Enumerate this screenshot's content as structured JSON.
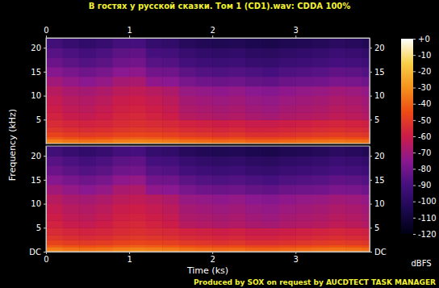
{
  "chart_data": {
    "type": "heatmap",
    "title": "В гостях у русской сказки. Том 1 (CD1).wav: CDDA 100%",
    "x_label": "Time (ks)",
    "y_label": "Frequency (kHz)",
    "annotations": [
      "Produced by SOX on request by AUCDTECT TASK MANAGER"
    ],
    "xlim": [
      0,
      3.89
    ],
    "xticks": [
      0,
      1,
      2,
      3
    ],
    "ylim": [
      0,
      22.05
    ],
    "time_edges": [
      0,
      0.2,
      0.4,
      0.6,
      0.8,
      1.0,
      1.2,
      1.4,
      1.6,
      1.8,
      2.0,
      2.2,
      2.4,
      2.6,
      2.8,
      3.0,
      3.2,
      3.4,
      3.6,
      3.8,
      3.89
    ],
    "freq_edges": [
      0,
      0.5,
      1,
      1.5,
      2.5,
      3.5,
      5,
      6.5,
      8,
      10,
      12,
      14,
      16,
      18,
      20,
      22.05
    ],
    "colorbar": {
      "label": "dBFS",
      "range": [
        -120,
        0
      ],
      "ticks": [
        {
          "value": 0,
          "label": "+0"
        },
        -10,
        -20,
        -30,
        -40,
        -50,
        -60,
        -70,
        -80,
        -90,
        -100,
        -110,
        -120
      ]
    },
    "channels": [
      {
        "yticks": [
          5,
          10,
          15,
          20
        ],
        "cells": [
          [
            -32,
            -34,
            -35,
            -34,
            -32,
            -31,
            -32,
            -33,
            -35,
            -36,
            -37,
            -36,
            -38,
            -38,
            -37,
            -36,
            -35,
            -34,
            -35,
            -36
          ],
          [
            -35,
            -37,
            -38,
            -37,
            -35,
            -34,
            -35,
            -36,
            -38,
            -39,
            -40,
            -39,
            -41,
            -41,
            -40,
            -39,
            -38,
            -37,
            -38,
            -39
          ],
          [
            -42,
            -44,
            -45,
            -44,
            -42,
            -41,
            -42,
            -43,
            -45,
            -46,
            -47,
            -46,
            -48,
            -48,
            -47,
            -46,
            -45,
            -44,
            -45,
            -46
          ],
          [
            -48,
            -50,
            -51,
            -50,
            -48,
            -47,
            -48,
            -49,
            -51,
            -52,
            -53,
            -52,
            -54,
            -54,
            -53,
            -52,
            -51,
            -50,
            -51,
            -52
          ],
          [
            -52,
            -54,
            -55,
            -54,
            -52,
            -51,
            -52,
            -53,
            -55,
            -56,
            -57,
            -56,
            -58,
            -58,
            -57,
            -56,
            -55,
            -54,
            -55,
            -56
          ],
          [
            -55,
            -57,
            -58,
            -57,
            -55,
            -54,
            -55,
            -56,
            -58,
            -59,
            -60,
            -59,
            -61,
            -61,
            -60,
            -59,
            -58,
            -57,
            -58,
            -59
          ],
          [
            -58,
            -61,
            -62,
            -60,
            -57,
            -56,
            -58,
            -60,
            -65,
            -66,
            -67,
            -66,
            -68,
            -69,
            -67,
            -66,
            -65,
            -63,
            -64,
            -66
          ],
          [
            -60,
            -63,
            -64,
            -62,
            -59,
            -58,
            -60,
            -62,
            -67,
            -68,
            -69,
            -68,
            -70,
            -71,
            -69,
            -68,
            -67,
            -65,
            -66,
            -68
          ],
          [
            -62,
            -65,
            -66,
            -64,
            -61,
            -60,
            -62,
            -64,
            -69,
            -70,
            -71,
            -70,
            -72,
            -73,
            -71,
            -70,
            -69,
            -67,
            -68,
            -70
          ],
          [
            -65,
            -68,
            -69,
            -67,
            -64,
            -63,
            -65,
            -67,
            -72,
            -73,
            -74,
            -73,
            -75,
            -76,
            -74,
            -73,
            -72,
            -70,
            -71,
            -73
          ],
          [
            -70,
            -73,
            -75,
            -73,
            -69,
            -68,
            -74,
            -75,
            -79,
            -81,
            -82,
            -81,
            -83,
            -84,
            -82,
            -81,
            -80,
            -78,
            -79,
            -81
          ],
          [
            -76,
            -79,
            -81,
            -79,
            -75,
            -74,
            -80,
            -81,
            -85,
            -87,
            -88,
            -87,
            -89,
            -90,
            -88,
            -87,
            -86,
            -84,
            -85,
            -87
          ],
          [
            -82,
            -85,
            -87,
            -85,
            -81,
            -80,
            -86,
            -87,
            -91,
            -93,
            -94,
            -93,
            -95,
            -96,
            -94,
            -93,
            -92,
            -90,
            -91,
            -93
          ],
          [
            -86,
            -89,
            -91,
            -89,
            -85,
            -84,
            -90,
            -91,
            -95,
            -97,
            -98,
            -97,
            -99,
            -100,
            -98,
            -97,
            -96,
            -94,
            -95,
            -97
          ],
          [
            -92,
            -95,
            -97,
            -95,
            -91,
            -90,
            -96,
            -97,
            -101,
            -103,
            -104,
            -103,
            -105,
            -106,
            -104,
            -103,
            -102,
            -100,
            -101,
            -103
          ]
        ]
      },
      {
        "yticks": [
          {
            "value": 0,
            "label": "DC"
          },
          5,
          10,
          15,
          20
        ],
        "cells": [
          [
            -32,
            -34,
            -35,
            -34,
            -32,
            -31,
            -32,
            -33,
            -35,
            -36,
            -37,
            -36,
            -38,
            -38,
            -37,
            -36,
            -35,
            -34,
            -35,
            -36
          ],
          [
            -35,
            -37,
            -38,
            -37,
            -35,
            -34,
            -35,
            -36,
            -38,
            -39,
            -40,
            -39,
            -41,
            -41,
            -40,
            -39,
            -38,
            -37,
            -38,
            -39
          ],
          [
            -42,
            -44,
            -45,
            -44,
            -42,
            -41,
            -42,
            -43,
            -45,
            -46,
            -47,
            -46,
            -48,
            -48,
            -47,
            -46,
            -45,
            -44,
            -45,
            -46
          ],
          [
            -48,
            -50,
            -51,
            -50,
            -48,
            -47,
            -48,
            -49,
            -51,
            -52,
            -53,
            -52,
            -54,
            -54,
            -53,
            -52,
            -51,
            -50,
            -51,
            -52
          ],
          [
            -52,
            -54,
            -55,
            -54,
            -52,
            -51,
            -52,
            -53,
            -55,
            -56,
            -57,
            -56,
            -58,
            -58,
            -57,
            -56,
            -55,
            -54,
            -55,
            -56
          ],
          [
            -55,
            -57,
            -58,
            -57,
            -55,
            -54,
            -55,
            -56,
            -58,
            -59,
            -60,
            -59,
            -61,
            -61,
            -60,
            -59,
            -58,
            -57,
            -58,
            -59
          ],
          [
            -58,
            -61,
            -62,
            -60,
            -57,
            -56,
            -58,
            -60,
            -65,
            -66,
            -67,
            -66,
            -68,
            -69,
            -67,
            -66,
            -65,
            -63,
            -64,
            -66
          ],
          [
            -60,
            -63,
            -64,
            -62,
            -59,
            -58,
            -60,
            -62,
            -67,
            -68,
            -69,
            -68,
            -70,
            -71,
            -69,
            -68,
            -67,
            -65,
            -66,
            -68
          ],
          [
            -62,
            -65,
            -66,
            -64,
            -61,
            -60,
            -62,
            -64,
            -69,
            -70,
            -71,
            -70,
            -72,
            -73,
            -71,
            -70,
            -69,
            -67,
            -68,
            -70
          ],
          [
            -65,
            -68,
            -69,
            -67,
            -64,
            -63,
            -65,
            -67,
            -72,
            -73,
            -74,
            -73,
            -75,
            -76,
            -74,
            -73,
            -72,
            -70,
            -71,
            -73
          ],
          [
            -70,
            -73,
            -75,
            -73,
            -68,
            -67,
            -74,
            -75,
            -79,
            -81,
            -82,
            -81,
            -83,
            -84,
            -82,
            -81,
            -80,
            -78,
            -79,
            -81
          ],
          [
            -76,
            -79,
            -81,
            -79,
            -74,
            -73,
            -80,
            -81,
            -85,
            -87,
            -88,
            -87,
            -89,
            -90,
            -88,
            -87,
            -86,
            -84,
            -85,
            -87
          ],
          [
            -82,
            -85,
            -87,
            -85,
            -81,
            -80,
            -86,
            -87,
            -91,
            -93,
            -94,
            -93,
            -95,
            -96,
            -94,
            -93,
            -92,
            -90,
            -91,
            -93
          ],
          [
            -86,
            -89,
            -91,
            -89,
            -85,
            -84,
            -90,
            -91,
            -95,
            -97,
            -98,
            -97,
            -99,
            -100,
            -98,
            -97,
            -96,
            -94,
            -95,
            -97
          ],
          [
            -92,
            -95,
            -97,
            -95,
            -91,
            -90,
            -96,
            -97,
            -101,
            -103,
            -104,
            -103,
            -105,
            -106,
            -104,
            -103,
            -102,
            -100,
            -101,
            -103
          ]
        ]
      }
    ]
  }
}
